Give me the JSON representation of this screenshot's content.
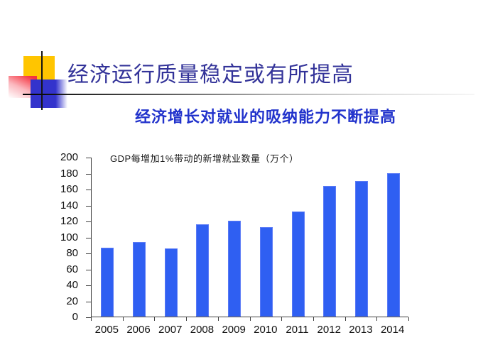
{
  "slide": {
    "title": "经济运行质量稳定或有所提高",
    "subtitle": "经济增长对就业的吸纳能力不断提高"
  },
  "chart_data": {
    "type": "bar",
    "title": "GDP每增加1%带动的新增就业数量（万个）",
    "categories": [
      "2005",
      "2006",
      "2007",
      "2008",
      "2009",
      "2010",
      "2011",
      "2012",
      "2013",
      "2014"
    ],
    "values": [
      86,
      93,
      85,
      116,
      120,
      112,
      132,
      164,
      170,
      180
    ],
    "xlabel": "",
    "ylabel": "",
    "ylim": [
      0,
      200
    ],
    "ytick_step": 20,
    "grid": false,
    "legend": false,
    "bar_color": "#2f5ff2"
  },
  "colors": {
    "title_text": "#333399",
    "subtitle_text": "#2233cc",
    "bar": "#2f5ff2",
    "deco_yellow": "#ffc500",
    "deco_blue": "#3333cc",
    "deco_red": "#f5333f",
    "axis": "#404040"
  }
}
